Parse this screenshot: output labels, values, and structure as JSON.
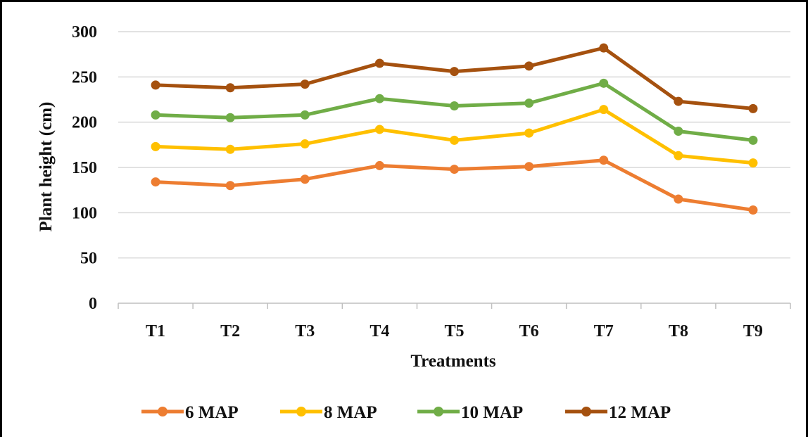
{
  "chart_data": {
    "type": "line",
    "title": "",
    "xlabel": "Treatments",
    "ylabel": "Plant height (cm)",
    "ylim": [
      0,
      300
    ],
    "yticks": [
      0,
      50,
      100,
      150,
      200,
      250,
      300
    ],
    "grid": true,
    "legend_position": "bottom",
    "categories": [
      "T1",
      "T2",
      "T3",
      "T4",
      "T5",
      "T6",
      "T7",
      "T8",
      "T9"
    ],
    "series": [
      {
        "name": "6 MAP",
        "color": "#ED7D31",
        "values": [
          134,
          130,
          137,
          152,
          148,
          151,
          158,
          115,
          103
        ]
      },
      {
        "name": "8 MAP",
        "color": "#FFC000",
        "values": [
          173,
          170,
          176,
          192,
          180,
          188,
          214,
          163,
          155
        ]
      },
      {
        "name": "10 MAP",
        "color": "#70AD47",
        "values": [
          208,
          205,
          208,
          226,
          218,
          221,
          243,
          190,
          180
        ]
      },
      {
        "name": "12 MAP",
        "color": "#A5510F",
        "values": [
          241,
          238,
          242,
          265,
          256,
          262,
          282,
          223,
          215
        ]
      }
    ]
  }
}
